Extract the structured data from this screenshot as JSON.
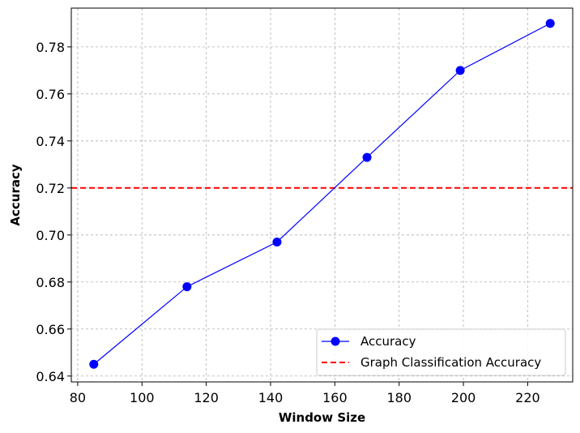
{
  "chart_data": {
    "type": "line",
    "xlabel": "Window Size",
    "ylabel": "Accuracy",
    "xlim": [
      78,
      234
    ],
    "ylim": [
      0.6375,
      0.7965
    ],
    "x_ticks": [
      80,
      100,
      120,
      140,
      160,
      180,
      200,
      220
    ],
    "y_ticks": [
      0.64,
      0.66,
      0.68,
      0.7,
      0.72,
      0.74,
      0.76,
      0.78
    ],
    "x_tick_labels": [
      "80",
      "100",
      "120",
      "140",
      "160",
      "180",
      "200",
      "220"
    ],
    "y_tick_labels": [
      "0.64",
      "0.66",
      "0.68",
      "0.70",
      "0.72",
      "0.74",
      "0.76",
      "0.78"
    ],
    "grid": true,
    "legend_position": "bottom-right",
    "series": [
      {
        "name": "Accuracy",
        "color": "#0000ff",
        "marker": "circle",
        "x": [
          85,
          114,
          142,
          170,
          199,
          227
        ],
        "y": [
          0.645,
          0.678,
          0.697,
          0.733,
          0.77,
          0.79
        ]
      }
    ],
    "reference_lines": [
      {
        "name": "Graph Classification Accuracy",
        "orientation": "horizontal",
        "y": 0.72,
        "color": "#ff0000",
        "style": "dashed"
      }
    ]
  }
}
